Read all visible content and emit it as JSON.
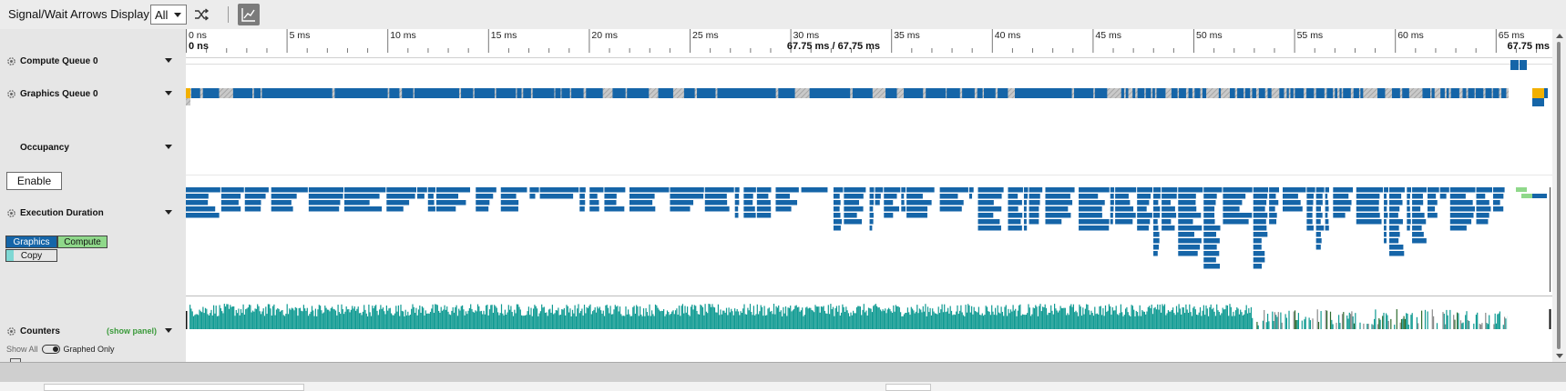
{
  "toolbar": {
    "title": "Signal/Wait Arrows Display",
    "filter_value": "All",
    "shuffle_icon": "shuffle-icon",
    "graph_icon": "line-chart-icon"
  },
  "ruler": {
    "ticks": [
      "0 ns",
      "5 ms",
      "10 ms",
      "15 ms",
      "20 ms",
      "25 ms",
      "30 ms",
      "35 ms",
      "40 ms",
      "45 ms",
      "50 ms",
      "55 ms",
      "60 ms",
      "65 ms"
    ],
    "start_label": "0 ns",
    "range_label": "67.75 ms / 67.75 ms",
    "end_label": "67.75 ms"
  },
  "rows": {
    "compute_queue": "Compute Queue 0",
    "graphics_queue": "Graphics Queue 0",
    "occupancy": "Occupancy",
    "enable": "Enable",
    "execution_duration": "Execution Duration",
    "counters": "Counters",
    "show_panel": "(show panel)"
  },
  "legend": {
    "graphics": "Graphics",
    "compute": "Compute",
    "copy": "Copy"
  },
  "counter_options": {
    "show_all": "Show All",
    "graphed_only": "Graphed Only"
  },
  "colors": {
    "graphics": "#1565a8",
    "compute": "#8fd88a",
    "copy": "#7fd8d4",
    "counter": "#0f9a92",
    "warning": "#f2b000"
  },
  "timeline": {
    "total_ms": 67.75
  }
}
